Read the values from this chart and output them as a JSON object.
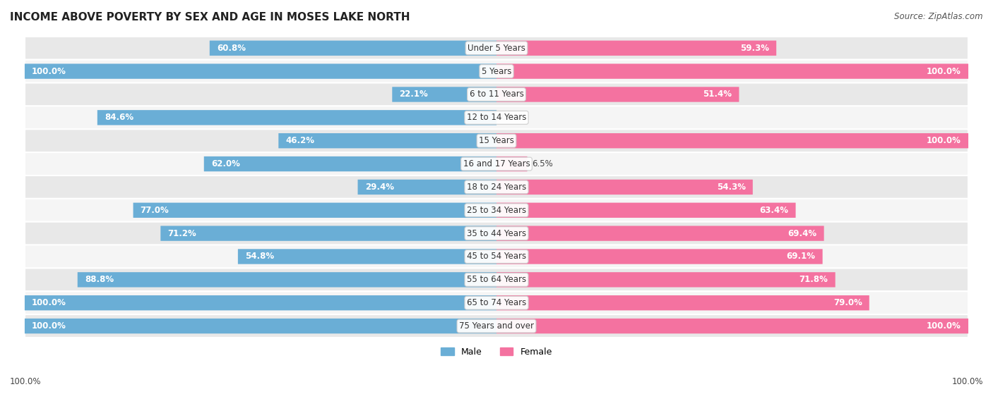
{
  "title": "INCOME ABOVE POVERTY BY SEX AND AGE IN MOSES LAKE NORTH",
  "source": "Source: ZipAtlas.com",
  "categories": [
    "Under 5 Years",
    "5 Years",
    "6 to 11 Years",
    "12 to 14 Years",
    "15 Years",
    "16 and 17 Years",
    "18 to 24 Years",
    "25 to 34 Years",
    "35 to 44 Years",
    "45 to 54 Years",
    "55 to 64 Years",
    "65 to 74 Years",
    "75 Years and over"
  ],
  "male_values": [
    60.8,
    100.0,
    22.1,
    84.6,
    46.2,
    62.0,
    29.4,
    77.0,
    71.2,
    54.8,
    88.8,
    100.0,
    100.0
  ],
  "female_values": [
    59.3,
    100.0,
    51.4,
    0.0,
    100.0,
    6.5,
    54.3,
    63.4,
    69.4,
    69.1,
    71.8,
    79.0,
    100.0
  ],
  "male_color": "#6aaed6",
  "male_color_light": "#b8d4e8",
  "female_color": "#f472a0",
  "female_color_light": "#f9b8ce",
  "male_label": "Male",
  "female_label": "Female",
  "bg_color_dark": "#e8e8e8",
  "bg_color_light": "#f5f5f5",
  "bar_height": 0.62,
  "max_value": 100.0,
  "title_fontsize": 11,
  "label_fontsize": 8.5,
  "source_fontsize": 8.5,
  "cat_fontsize": 8.5,
  "bottom_label": "100.0%"
}
